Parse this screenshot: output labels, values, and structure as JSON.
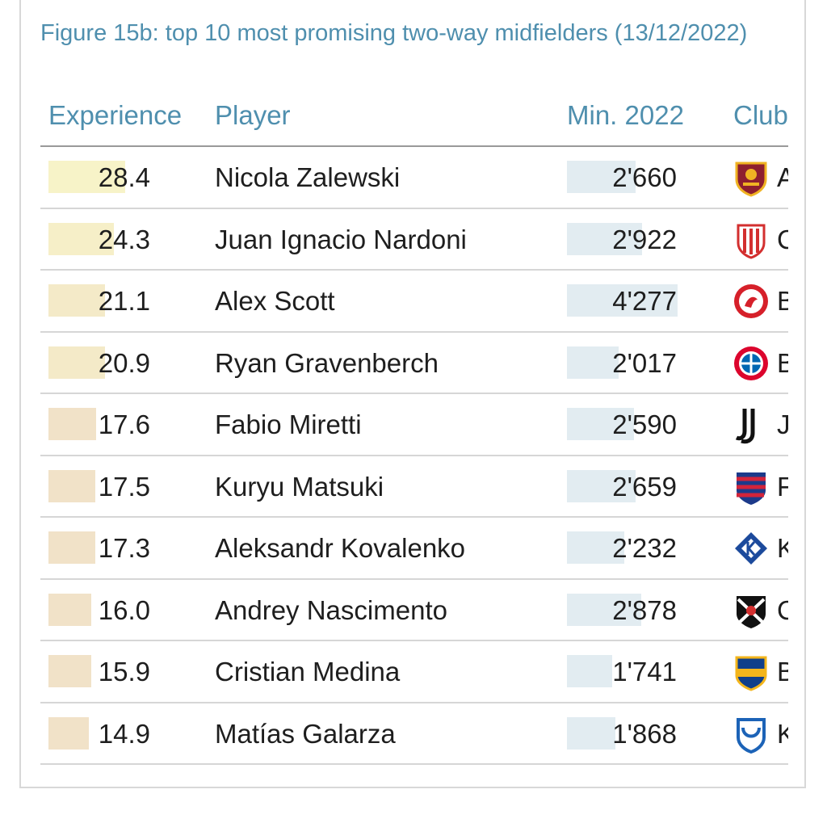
{
  "title": "Figure 15b: top 10 most promising two-way midfielders (13/12/2022)",
  "chart_data": {
    "type": "table",
    "title": "Figure 15b: top 10 most promising two-way midfielders (13/12/2022)",
    "columns": [
      "Experience",
      "Player",
      "Min. 2022",
      "Club"
    ],
    "experience_max": 30,
    "minutes_max": 4700,
    "colors": {
      "experience_high": "#f7f3c8",
      "experience_low": "#f1e2c8",
      "minutes_bar": "#e2ecf1",
      "header": "#4f8fae"
    },
    "rows": [
      {
        "experience": 28.4,
        "experience_label": "28.4",
        "player": "Nicola Zalewski",
        "minutes": 2660,
        "minutes_label": "2'660",
        "club_initial": "A",
        "club_logo": "roma-crest-icon",
        "exp_color": "#f7f3c8"
      },
      {
        "experience": 24.3,
        "experience_label": "24.3",
        "player": "Juan Ignacio Nardoni",
        "minutes": 2922,
        "minutes_label": "2'922",
        "club_initial": "C",
        "club_logo": "union-santa-fe-crest-icon",
        "exp_color": "#f6efc8"
      },
      {
        "experience": 21.1,
        "experience_label": "21.1",
        "player": "Alex Scott",
        "minutes": 4277,
        "minutes_label": "4'277",
        "club_initial": "B",
        "club_logo": "bristol-city-crest-icon",
        "exp_color": "#f4eac8"
      },
      {
        "experience": 20.9,
        "experience_label": "20.9",
        "player": "Ryan Gravenberch",
        "minutes": 2017,
        "minutes_label": "2'017",
        "club_initial": "B",
        "club_logo": "bayern-crest-icon",
        "exp_color": "#f4eac8"
      },
      {
        "experience": 17.6,
        "experience_label": "17.6",
        "player": "Fabio Miretti",
        "minutes": 2590,
        "minutes_label": "2'590",
        "club_initial": "J",
        "club_logo": "juventus-crest-icon",
        "exp_color": "#f1e2c8"
      },
      {
        "experience": 17.5,
        "experience_label": "17.5",
        "player": "Kuryu Matsuki",
        "minutes": 2659,
        "minutes_label": "2'659",
        "club_initial": "F",
        "club_logo": "fc-tokyo-crest-icon",
        "exp_color": "#f1e2c8"
      },
      {
        "experience": 17.3,
        "experience_label": "17.3",
        "player": "Aleksandr Kovalenko",
        "minutes": 2232,
        "minutes_label": "2'232",
        "club_initial": "K",
        "club_logo": "krylia-sovetov-crest-icon",
        "exp_color": "#f1e2c8"
      },
      {
        "experience": 16.0,
        "experience_label": "16.0",
        "player": "Andrey Nascimento",
        "minutes": 2878,
        "minutes_label": "2'878",
        "club_initial": "C",
        "club_logo": "vasco-crest-icon",
        "exp_color": "#f1e2c8"
      },
      {
        "experience": 15.9,
        "experience_label": "15.9",
        "player": "Cristian Medina",
        "minutes": 1741,
        "minutes_label": "1'741",
        "club_initial": "B",
        "club_logo": "boca-juniors-crest-icon",
        "exp_color": "#f1e2c8"
      },
      {
        "experience": 14.9,
        "experience_label": "14.9",
        "player": "Matías Galarza",
        "minutes": 1868,
        "minutes_label": "1'868",
        "club_initial": "K",
        "club_logo": "genk-crest-icon",
        "exp_color": "#f1e2c8"
      }
    ]
  }
}
